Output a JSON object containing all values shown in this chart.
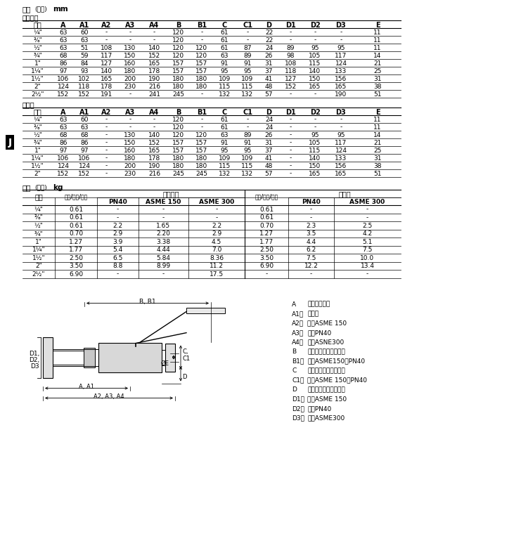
{
  "title_dim": "尺寸(近似)mm",
  "title_weight": "重量(近似)kg",
  "label_reduced": "缩小通径",
  "label_full": "全通径",
  "dim_headers": [
    "口径",
    "A",
    "A1",
    "A2",
    "A3",
    "A4",
    "B",
    "B1",
    "C",
    "C1",
    "D",
    "D1",
    "D2",
    "D3",
    "E"
  ],
  "dim_reduced": [
    [
      "¼\"",
      "63",
      "60",
      "-",
      "-",
      "-",
      "120",
      "-",
      "61",
      "-",
      "22",
      "-",
      "-",
      "-",
      "11"
    ],
    [
      "⅜\"",
      "63",
      "63",
      "-",
      "-",
      "-",
      "120",
      "-",
      "61",
      "-",
      "22",
      "-",
      "-",
      "-",
      "11"
    ],
    [
      "½\"",
      "63",
      "51",
      "108",
      "130",
      "140",
      "120",
      "120",
      "61",
      "87",
      "24",
      "89",
      "95",
      "95",
      "11"
    ],
    [
      "¾\"",
      "68",
      "59",
      "117",
      "150",
      "152",
      "120",
      "120",
      "63",
      "89",
      "26",
      "98",
      "105",
      "117",
      "14"
    ],
    [
      "1\"",
      "86",
      "84",
      "127",
      "160",
      "165",
      "157",
      "157",
      "91",
      "91",
      "31",
      "108",
      "115",
      "124",
      "21"
    ],
    [
      "1¼\"",
      "97",
      "93",
      "140",
      "180",
      "178",
      "157",
      "157",
      "95",
      "95",
      "37",
      "118",
      "140",
      "133",
      "25"
    ],
    [
      "1½\"",
      "106",
      "102",
      "165",
      "200",
      "190",
      "180",
      "180",
      "109",
      "109",
      "41",
      "127",
      "150",
      "156",
      "31"
    ],
    [
      "2\"",
      "124",
      "118",
      "178",
      "230",
      "216",
      "180",
      "180",
      "115",
      "115",
      "48",
      "152",
      "165",
      "165",
      "38"
    ],
    [
      "2½\"",
      "152",
      "152",
      "191",
      "-",
      "241",
      "245",
      "-",
      "132",
      "132",
      "57",
      "-",
      "-",
      "190",
      "51"
    ]
  ],
  "dim_full": [
    [
      "¼\"",
      "63",
      "60",
      "-",
      "-",
      "-",
      "120",
      "-",
      "61",
      "-",
      "24",
      "-",
      "-",
      "-",
      "11"
    ],
    [
      "⅜\"",
      "63",
      "63",
      "-",
      "-",
      "-",
      "120",
      "-",
      "61",
      "-",
      "24",
      "-",
      "-",
      "-",
      "11"
    ],
    [
      "½\"",
      "68",
      "68",
      "-",
      "130",
      "140",
      "120",
      "120",
      "63",
      "89",
      "26",
      "-",
      "95",
      "95",
      "14"
    ],
    [
      "¾\"",
      "86",
      "86",
      "-",
      "150",
      "152",
      "157",
      "157",
      "91",
      "91",
      "31",
      "-",
      "105",
      "117",
      "21"
    ],
    [
      "1\"",
      "97",
      "97",
      "-",
      "160",
      "165",
      "157",
      "157",
      "95",
      "95",
      "37",
      "-",
      "115",
      "124",
      "25"
    ],
    [
      "1¼\"",
      "106",
      "106",
      "-",
      "180",
      "178",
      "180",
      "180",
      "109",
      "109",
      "41",
      "-",
      "140",
      "133",
      "31"
    ],
    [
      "1½\"",
      "124",
      "124",
      "-",
      "200",
      "190",
      "180",
      "180",
      "115",
      "115",
      "48",
      "-",
      "150",
      "156",
      "38"
    ],
    [
      "2\"",
      "152",
      "152",
      "-",
      "230",
      "216",
      "245",
      "245",
      "132",
      "132",
      "57",
      "-",
      "165",
      "165",
      "51"
    ]
  ],
  "weight_subhdr_reduced": "缩小通径",
  "weight_subhdr_full": "全通径",
  "weight_col0": "口径",
  "weight_col1r": "螺纹/对焊/套焊",
  "weight_col2r": "PN40",
  "weight_col3r": "ASME 150",
  "weight_col4r": "ASME 300",
  "weight_col1f": "螺纹/对焊/套焊",
  "weight_col2f": "PN40",
  "weight_col3f": "ASME 300",
  "weight_data": [
    [
      "¼\"",
      "0.61",
      "-",
      "-",
      "-",
      "0.61",
      "-",
      "-"
    ],
    [
      "⅜\"",
      "0.61",
      "-",
      "-",
      "-",
      "0.61",
      "-",
      "-"
    ],
    [
      "½\"",
      "0.61",
      "2.2",
      "1.65",
      "2.2",
      "0.70",
      "2.3",
      "2.5"
    ],
    [
      "¾\"",
      "0.70",
      "2.9",
      "2.20",
      "2.9",
      "1.27",
      "3.5",
      "4.2"
    ],
    [
      "1\"",
      "1.27",
      "3.9",
      "3.38",
      "4.5",
      "1.77",
      "4.4",
      "5.1"
    ],
    [
      "1¼\"",
      "1.77",
      "5.4",
      "4.44",
      "7.0",
      "2.50",
      "6.2",
      "7.5"
    ],
    [
      "1½\"",
      "2.50",
      "6.5",
      "5.84",
      "8.36",
      "3.50",
      "7.5",
      "10.0"
    ],
    [
      "2\"",
      "3.50",
      "8.8",
      "8.99",
      "11.2",
      "6.90",
      "12.2",
      "13.4"
    ],
    [
      "2½\"",
      "6.90",
      "-",
      "-",
      "17.5",
      "-",
      "-",
      "-"
    ]
  ],
  "legend_items": [
    [
      "A",
      "：螺纹和对焊"
    ],
    [
      "A1：",
      "承插焊"
    ],
    [
      "A2：",
      "法山ASME 150"
    ],
    [
      "A3：",
      "法山PN40"
    ],
    [
      "A4：",
      "法山ASNE300"
    ],
    [
      "B",
      "：螺纹，承插焊，对焊"
    ],
    [
      "B1：",
      "法山ASME150，PN40"
    ],
    [
      "C",
      "：螺纹，对焊，承插焊"
    ],
    [
      "C1：",
      "法山ASME 150，PN40"
    ],
    [
      "D",
      "：螺纹，承插焊，对焊"
    ],
    [
      "D1：",
      "法山ASME 150"
    ],
    [
      "D2：",
      "法山PN40"
    ],
    [
      "D3：",
      "法山ASME300"
    ]
  ],
  "j_label": "J",
  "bg_color": "#ffffff"
}
